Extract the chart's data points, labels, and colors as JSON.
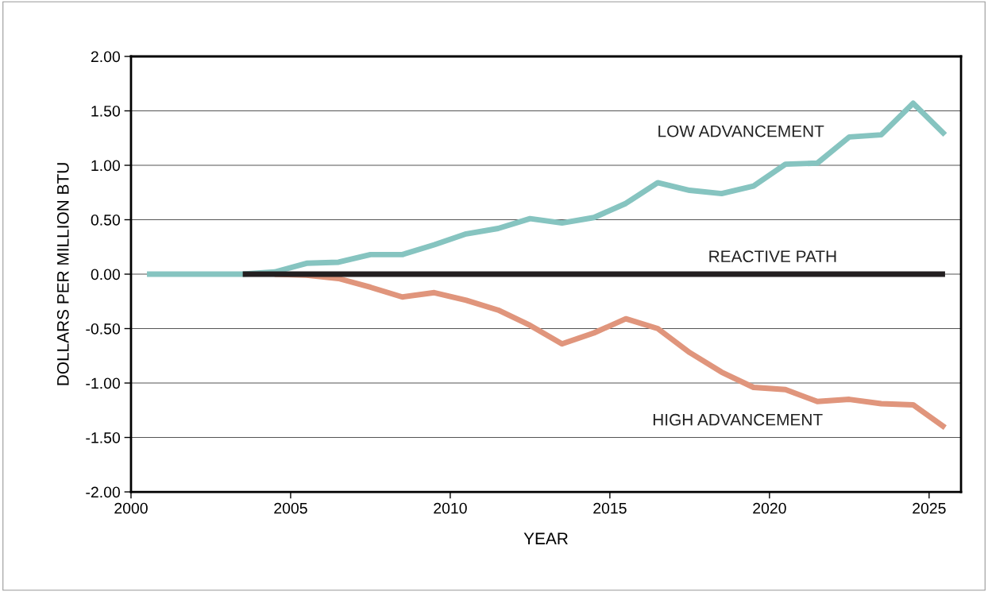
{
  "chart_data": {
    "type": "line",
    "xlabel": "YEAR",
    "ylabel": "DOLLARS PER MILLION BTU",
    "xlim": [
      2000,
      2026
    ],
    "xticks": [
      2000,
      2005,
      2010,
      2015,
      2020,
      2025
    ],
    "ylim": [
      -2,
      2
    ],
    "yticks": [
      {
        "value": -2,
        "label": "-2.00"
      },
      {
        "value": -1.5,
        "label": "-1.50"
      },
      {
        "value": -1,
        "label": "-1.00"
      },
      {
        "value": -0.5,
        "label": "-0.50"
      },
      {
        "value": 0,
        "label": "0.00"
      },
      {
        "value": 0.5,
        "label": "0.50"
      },
      {
        "value": 1,
        "label": "1.00"
      },
      {
        "value": 1.5,
        "label": "1.50"
      },
      {
        "value": 2,
        "label": "2.00"
      }
    ],
    "grid": "y",
    "legend": false,
    "marker": "none",
    "line_style": "solid",
    "series": [
      {
        "name": "HIGH ADVANCEMENT",
        "color": "#e0957c",
        "x": [
          2004.5,
          2005.5,
          2006.5,
          2007.5,
          2008.5,
          2009.5,
          2010.5,
          2011.5,
          2012.5,
          2013.5,
          2014.5,
          2015.5,
          2016.5,
          2017.5,
          2018.5,
          2019.5,
          2020.5,
          2021.5,
          2022.5,
          2023.5,
          2024.5,
          2025.5
        ],
        "values": [
          0,
          -0.01,
          -0.04,
          -0.12,
          -0.21,
          -0.17,
          -0.24,
          -0.33,
          -0.47,
          -0.64,
          -0.54,
          -0.41,
          -0.5,
          -0.72,
          -0.9,
          -1.04,
          -1.06,
          -1.17,
          -1.15,
          -1.19,
          -1.2,
          -1.41
        ]
      },
      {
        "name": "REACTIVE PATH",
        "color": "#231f20",
        "x": [
          2003.5,
          2025.5
        ],
        "values": [
          0,
          0
        ]
      },
      {
        "name": "LOW ADVANCEMENT",
        "color": "#86c4c0",
        "x": [
          2000.5,
          2001.5,
          2002.5,
          2003.5,
          2004.5,
          2005.5,
          2006.5,
          2007.5,
          2008.5,
          2009.5,
          2010.5,
          2011.5,
          2012.5,
          2013.5,
          2014.5,
          2015.5,
          2016.5,
          2017.5,
          2018.5,
          2019.5,
          2020.5,
          2021.5,
          2022.5,
          2023.5,
          2024.5,
          2025.5
        ],
        "values": [
          0,
          0,
          0,
          0,
          0.02,
          0.1,
          0.11,
          0.18,
          0.18,
          0.27,
          0.37,
          0.42,
          0.51,
          0.47,
          0.52,
          0.65,
          0.84,
          0.77,
          0.74,
          0.81,
          1.01,
          1.02,
          1.26,
          1.28,
          1.57,
          1.28
        ]
      }
    ]
  }
}
